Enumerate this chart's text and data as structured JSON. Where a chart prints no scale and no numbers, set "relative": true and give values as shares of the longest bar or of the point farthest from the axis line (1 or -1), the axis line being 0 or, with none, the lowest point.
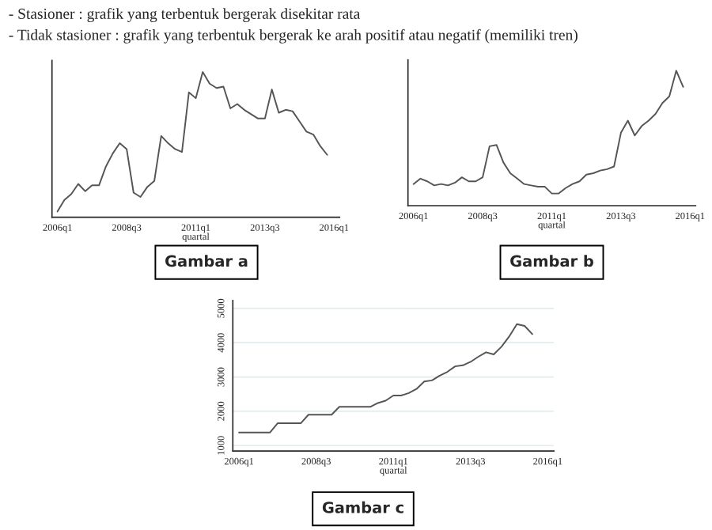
{
  "chart_data": [
    {
      "type": "line",
      "relative": true,
      "xlabel": "quartal",
      "categories": [
        "2006q1",
        null,
        null,
        null,
        null,
        null,
        null,
        null,
        null,
        null,
        "2008q3",
        null,
        null,
        null,
        null,
        null,
        null,
        null,
        null,
        null,
        "2011q1",
        null,
        null,
        null,
        null,
        null,
        null,
        null,
        null,
        null,
        "2013q3",
        null,
        null,
        null,
        null,
        null,
        null,
        null,
        null,
        null,
        "2016q1"
      ],
      "series": [
        {
          "color": "#555555",
          "values": [
            0.04,
            0.12,
            0.16,
            0.23,
            0.18,
            0.22,
            0.22,
            0.35,
            0.44,
            0.51,
            0.47,
            0.17,
            0.14,
            0.21,
            0.25,
            0.56,
            0.51,
            0.47,
            0.45,
            0.86,
            0.82,
            1,
            0.92,
            0.89,
            0.9,
            0.75,
            0.78,
            0.74,
            0.71,
            0.68,
            0.68,
            0.88,
            0.72,
            0.74,
            0.73,
            0.66,
            0.59,
            0.57,
            0.49,
            0.43,
            null
          ]
        }
      ],
      "annotations": [
        "- Stasioner : grafik yang terbentuk bergerak disekitar rata",
        "- Tidak stasioner : grafik yang terbentuk bergerak ke arah positif atau negatif (memiliki tren)",
        "Gambar a"
      ]
    },
    {
      "type": "line",
      "relative": true,
      "xlabel": "quartal",
      "categories": [
        "2006q1",
        null,
        null,
        null,
        null,
        null,
        null,
        null,
        null,
        null,
        "2008q3",
        null,
        null,
        null,
        null,
        null,
        null,
        null,
        null,
        null,
        "2011q1",
        null,
        null,
        null,
        null,
        null,
        null,
        null,
        null,
        null,
        "2013q3",
        null,
        null,
        null,
        null,
        null,
        null,
        null,
        null,
        null,
        "2016q1"
      ],
      "series": [
        {
          "color": "#555555",
          "values": [
            0.16,
            0.2,
            0.18,
            0.15,
            0.16,
            0.15,
            0.17,
            0.21,
            0.18,
            0.18,
            0.21,
            0.44,
            0.45,
            0.32,
            0.24,
            0.2,
            0.16,
            0.15,
            0.14,
            0.14,
            0.09,
            0.09,
            0.13,
            0.16,
            0.18,
            0.23,
            0.24,
            0.26,
            0.27,
            0.29,
            0.54,
            0.63,
            0.52,
            0.59,
            0.63,
            0.68,
            0.76,
            0.81,
            1,
            0.88,
            null
          ]
        }
      ],
      "annotations": [
        "Gambar b"
      ]
    },
    {
      "type": "line",
      "xlabel": "quartal",
      "categories": [
        "2006q1",
        null,
        null,
        null,
        null,
        null,
        null,
        null,
        null,
        null,
        "2008q3",
        null,
        null,
        null,
        null,
        null,
        null,
        null,
        null,
        null,
        "2011q1",
        null,
        null,
        null,
        null,
        null,
        null,
        null,
        null,
        null,
        "2013q3",
        null,
        null,
        null,
        null,
        null,
        null,
        null,
        null,
        null,
        "2016q1"
      ],
      "ylim": [
        840,
        5230
      ],
      "yticks": [
        1000,
        2000,
        3000,
        4000,
        5000
      ],
      "grid": "y",
      "series": [
        {
          "color": "#555555",
          "values": [
            1380,
            1380,
            1380,
            1380,
            1380,
            1650,
            1650,
            1650,
            1650,
            1900,
            1900,
            1900,
            1900,
            2130,
            2130,
            2130,
            2130,
            2130,
            2240,
            2310,
            2460,
            2460,
            2530,
            2650,
            2870,
            2900,
            3040,
            3150,
            3310,
            3340,
            3440,
            3590,
            3720,
            3660,
            3880,
            4180,
            4540,
            4490,
            4250,
            null,
            null
          ]
        }
      ],
      "annotations": [
        "Gambar c"
      ]
    }
  ]
}
